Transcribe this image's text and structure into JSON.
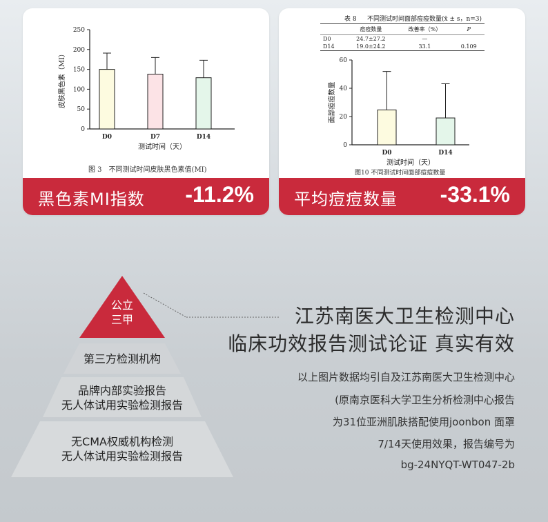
{
  "card_left": {
    "band_label": "黑色素MI指数",
    "band_value": "-11.2%",
    "caption": "图 3　不同测试时间皮肤黑色素值(MI)"
  },
  "card_right": {
    "band_label": "平均痘痘数量",
    "band_value": "-33.1%",
    "caption": "图10 不同测试时间面部痘痘数量",
    "table": {
      "label": "表 8",
      "title": "不同测试时间面部痘痘数量(x̄ ± s，n=3)",
      "headers": [
        "",
        "痘痘数量",
        "改善率（%）",
        "P"
      ],
      "rows": [
        [
          "D0",
          "24.7±27.2",
          "—",
          ""
        ],
        [
          "D14",
          "19.0±24.2",
          "33.1",
          "0.109"
        ]
      ]
    }
  },
  "chart_data": [
    {
      "type": "bar",
      "categories": [
        "D0",
        "D7",
        "D14"
      ],
      "values": [
        150,
        138,
        129
      ],
      "errors": [
        41,
        42,
        44
      ],
      "colors": [
        "#fdfbe0",
        "#fce3e6",
        "#e4f6ea"
      ],
      "title": "",
      "xlabel": "测试时间（天）",
      "ylabel": "皮肤黑色素（MI）",
      "ylim": [
        0,
        250
      ],
      "yticks": [
        0,
        50,
        100,
        150,
        200,
        250
      ]
    },
    {
      "type": "bar",
      "categories": [
        "D0",
        "D14"
      ],
      "values": [
        24.7,
        19.0
      ],
      "errors": [
        27.2,
        24.2
      ],
      "colors": [
        "#fdfbe0",
        "#e4f6ea"
      ],
      "title": "",
      "xlabel": "测试时间（天）",
      "ylabel": "面部痘痘数量",
      "ylim": [
        0,
        60
      ],
      "yticks": [
        0,
        20,
        40,
        60
      ]
    }
  ],
  "pyramid": {
    "top": "公立\n三甲",
    "tier2": "第三方检测机构",
    "tier3": "品牌内部实验报告\n无人体试用实验检测报告",
    "tier4": "无CMA权威机构检测\n无人体试用实验检测报告",
    "accent": "#c92a3c"
  },
  "headline": {
    "line1": "江苏南医大卫生检测中心",
    "line2": "临床功效报告测试论证 真实有效"
  },
  "note": [
    "以上图片数据均引自及江苏南医大卫生检测中心",
    "(原南京医科大学卫生分析检测中心报告",
    "为31位亚洲肌肤搭配使用joonbon 面罩",
    "7/14天使用效果，报告编号为",
    "bg-24NYQT-WT047-2b"
  ]
}
